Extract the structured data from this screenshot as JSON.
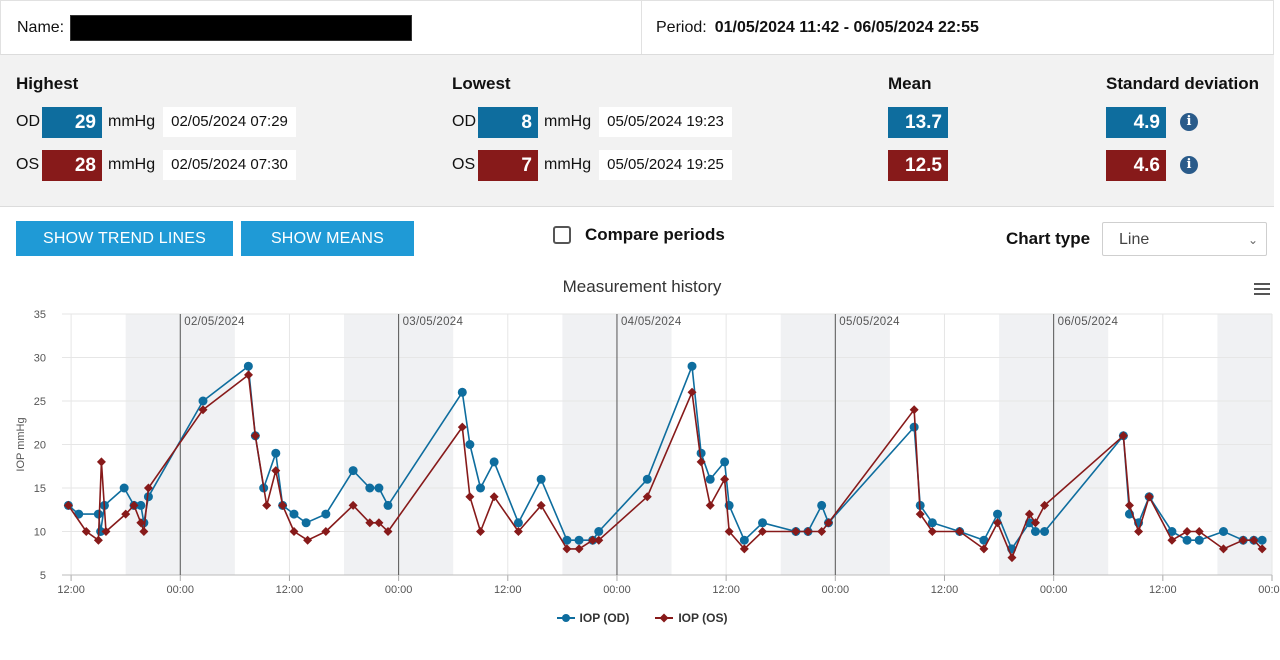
{
  "header": {
    "name_label": "Name:",
    "period_label": "Period:",
    "period_value": "01/05/2024 11:42 - 06/05/2024 22:55"
  },
  "stats": {
    "highest": {
      "title": "Highest",
      "od": {
        "eye": "OD",
        "value": "29",
        "unit": "mmHg",
        "date": "02/05/2024 07:29"
      },
      "os": {
        "eye": "OS",
        "value": "28",
        "unit": "mmHg",
        "date": "02/05/2024 07:30"
      }
    },
    "lowest": {
      "title": "Lowest",
      "od": {
        "eye": "OD",
        "value": "8",
        "unit": "mmHg",
        "date": "05/05/2024 19:23"
      },
      "os": {
        "eye": "OS",
        "value": "7",
        "unit": "mmHg",
        "date": "05/05/2024 19:25"
      }
    },
    "mean": {
      "title": "Mean",
      "od": "13.7",
      "os": "12.5"
    },
    "sd": {
      "title": "Standard deviation",
      "od": "4.9",
      "os": "4.6",
      "info_icon": "info-icon"
    }
  },
  "controls": {
    "trend_label": "SHOW TREND LINES",
    "means_label": "SHOW MEANS",
    "compare_label": "Compare periods",
    "compare_checked": false,
    "chart_type_label": "Chart type",
    "chart_type_value": "Line",
    "menu_icon": "hamburger-menu-icon"
  },
  "colors": {
    "od": "#0e6d9e",
    "os": "#871a1a",
    "night_band": "#f0f1f3",
    "button": "#1f9ad6"
  },
  "chart_data": {
    "type": "line",
    "title": "Measurement history",
    "ylabel": "IOP mmHg",
    "ylim": [
      5,
      35
    ],
    "yticks": [
      5,
      10,
      15,
      20,
      25,
      30,
      35
    ],
    "xlim": [
      "2024-05-01 11:00",
      "2024-05-07 00:00"
    ],
    "x_tick_labels": [
      "12:00",
      "00:00",
      "12:00",
      "00:00",
      "12:00",
      "00:00",
      "12:00",
      "00:00",
      "12:00",
      "00:00",
      "12:00",
      "00:00"
    ],
    "x_tick_times": [
      "2024-05-01 12:00",
      "2024-05-02 00:00",
      "2024-05-02 12:00",
      "2024-05-03 00:00",
      "2024-05-03 12:00",
      "2024-05-04 00:00",
      "2024-05-04 12:00",
      "2024-05-05 00:00",
      "2024-05-05 12:00",
      "2024-05-06 00:00",
      "2024-05-06 12:00",
      "2024-05-07 00:00"
    ],
    "day_labels": [
      "02/05/2024",
      "03/05/2024",
      "04/05/2024",
      "05/05/2024",
      "06/05/2024"
    ],
    "day_times": [
      "2024-05-02 00:00",
      "2024-05-03 00:00",
      "2024-05-04 00:00",
      "2024-05-05 00:00",
      "2024-05-06 00:00"
    ],
    "night_bands": [
      [
        "2024-05-01 18:00",
        "2024-05-02 06:00"
      ],
      [
        "2024-05-02 18:00",
        "2024-05-03 06:00"
      ],
      [
        "2024-05-03 18:00",
        "2024-05-04 06:00"
      ],
      [
        "2024-05-04 18:00",
        "2024-05-05 06:00"
      ],
      [
        "2024-05-05 18:00",
        "2024-05-06 06:00"
      ],
      [
        "2024-05-06 18:00",
        "2024-05-07 00:00"
      ]
    ],
    "series": [
      {
        "name": "IOP (OD)",
        "marker": "circle",
        "points": [
          [
            "2024-05-01 11:42",
            13
          ],
          [
            "2024-05-01 12:50",
            12
          ],
          [
            "2024-05-01 15:00",
            12
          ],
          [
            "2024-05-01 15:15",
            10
          ],
          [
            "2024-05-01 15:40",
            13
          ],
          [
            "2024-05-01 17:50",
            15
          ],
          [
            "2024-05-01 18:55",
            13
          ],
          [
            "2024-05-01 19:40",
            13
          ],
          [
            "2024-05-01 20:00",
            11
          ],
          [
            "2024-05-01 20:30",
            14
          ],
          [
            "2024-05-02 02:30",
            25
          ],
          [
            "2024-05-02 07:29",
            29
          ],
          [
            "2024-05-02 08:15",
            21
          ],
          [
            "2024-05-02 09:10",
            15
          ],
          [
            "2024-05-02 10:30",
            19
          ],
          [
            "2024-05-02 11:15",
            13
          ],
          [
            "2024-05-02 12:30",
            12
          ],
          [
            "2024-05-02 13:50",
            11
          ],
          [
            "2024-05-02 16:00",
            12
          ],
          [
            "2024-05-02 19:00",
            17
          ],
          [
            "2024-05-02 20:50",
            15
          ],
          [
            "2024-05-02 21:50",
            15
          ],
          [
            "2024-05-02 22:50",
            13
          ],
          [
            "2024-05-03 07:00",
            26
          ],
          [
            "2024-05-03 07:50",
            20
          ],
          [
            "2024-05-03 09:00",
            15
          ],
          [
            "2024-05-03 10:30",
            18
          ],
          [
            "2024-05-03 13:10",
            11
          ],
          [
            "2024-05-03 15:40",
            16
          ],
          [
            "2024-05-03 18:30",
            9
          ],
          [
            "2024-05-03 19:50",
            9
          ],
          [
            "2024-05-03 21:20",
            9
          ],
          [
            "2024-05-03 22:00",
            10
          ],
          [
            "2024-05-04 03:20",
            16
          ],
          [
            "2024-05-04 08:15",
            29
          ],
          [
            "2024-05-04 09:15",
            19
          ],
          [
            "2024-05-04 10:15",
            16
          ],
          [
            "2024-05-04 11:50",
            18
          ],
          [
            "2024-05-04 12:20",
            13
          ],
          [
            "2024-05-04 14:00",
            9
          ],
          [
            "2024-05-04 16:00",
            11
          ],
          [
            "2024-05-04 19:40",
            10
          ],
          [
            "2024-05-04 21:00",
            10
          ],
          [
            "2024-05-04 22:30",
            13
          ],
          [
            "2024-05-04 23:15",
            11
          ],
          [
            "2024-05-05 08:40",
            22
          ],
          [
            "2024-05-05 09:20",
            13
          ],
          [
            "2024-05-05 10:40",
            11
          ],
          [
            "2024-05-05 13:40",
            10
          ],
          [
            "2024-05-05 16:20",
            9
          ],
          [
            "2024-05-05 17:50",
            12
          ],
          [
            "2024-05-05 19:23",
            8
          ],
          [
            "2024-05-05 21:20",
            11
          ],
          [
            "2024-05-05 22:00",
            10
          ],
          [
            "2024-05-05 23:00",
            10
          ],
          [
            "2024-05-06 07:40",
            21
          ],
          [
            "2024-05-06 08:20",
            12
          ],
          [
            "2024-05-06 09:20",
            11
          ],
          [
            "2024-05-06 10:30",
            14
          ],
          [
            "2024-05-06 13:00",
            10
          ],
          [
            "2024-05-06 14:40",
            9
          ],
          [
            "2024-05-06 16:00",
            9
          ],
          [
            "2024-05-06 18:40",
            10
          ],
          [
            "2024-05-06 20:50",
            9
          ],
          [
            "2024-05-06 22:00",
            9
          ],
          [
            "2024-05-06 22:55",
            9
          ]
        ]
      },
      {
        "name": "IOP (OS)",
        "marker": "diamond",
        "points": [
          [
            "2024-05-01 11:42",
            13
          ],
          [
            "2024-05-01 13:40",
            10
          ],
          [
            "2024-05-01 15:00",
            9
          ],
          [
            "2024-05-01 15:20",
            18
          ],
          [
            "2024-05-01 15:50",
            10
          ],
          [
            "2024-05-01 18:00",
            12
          ],
          [
            "2024-05-01 18:55",
            13
          ],
          [
            "2024-05-01 19:40",
            11
          ],
          [
            "2024-05-01 20:00",
            10
          ],
          [
            "2024-05-01 20:30",
            15
          ],
          [
            "2024-05-02 02:30",
            24
          ],
          [
            "2024-05-02 07:30",
            28
          ],
          [
            "2024-05-02 08:15",
            21
          ],
          [
            "2024-05-02 09:30",
            13
          ],
          [
            "2024-05-02 10:30",
            17
          ],
          [
            "2024-05-02 11:15",
            13
          ],
          [
            "2024-05-02 12:30",
            10
          ],
          [
            "2024-05-02 14:00",
            9
          ],
          [
            "2024-05-02 16:00",
            10
          ],
          [
            "2024-05-02 19:00",
            13
          ],
          [
            "2024-05-02 20:50",
            11
          ],
          [
            "2024-05-02 21:50",
            11
          ],
          [
            "2024-05-02 22:50",
            10
          ],
          [
            "2024-05-03 07:00",
            22
          ],
          [
            "2024-05-03 07:50",
            14
          ],
          [
            "2024-05-03 09:00",
            10
          ],
          [
            "2024-05-03 10:30",
            14
          ],
          [
            "2024-05-03 13:10",
            10
          ],
          [
            "2024-05-03 15:40",
            13
          ],
          [
            "2024-05-03 18:30",
            8
          ],
          [
            "2024-05-03 19:50",
            8
          ],
          [
            "2024-05-03 21:20",
            9
          ],
          [
            "2024-05-03 22:00",
            9
          ],
          [
            "2024-05-04 03:20",
            14
          ],
          [
            "2024-05-04 08:15",
            26
          ],
          [
            "2024-05-04 09:15",
            18
          ],
          [
            "2024-05-04 10:15",
            13
          ],
          [
            "2024-05-04 11:50",
            16
          ],
          [
            "2024-05-04 12:20",
            10
          ],
          [
            "2024-05-04 14:00",
            8
          ],
          [
            "2024-05-04 16:00",
            10
          ],
          [
            "2024-05-04 19:40",
            10
          ],
          [
            "2024-05-04 21:00",
            10
          ],
          [
            "2024-05-04 22:30",
            10
          ],
          [
            "2024-05-04 23:15",
            11
          ],
          [
            "2024-05-05 08:40",
            24
          ],
          [
            "2024-05-05 09:20",
            12
          ],
          [
            "2024-05-05 10:40",
            10
          ],
          [
            "2024-05-05 13:40",
            10
          ],
          [
            "2024-05-05 16:20",
            8
          ],
          [
            "2024-05-05 17:50",
            11
          ],
          [
            "2024-05-05 19:25",
            7
          ],
          [
            "2024-05-05 21:20",
            12
          ],
          [
            "2024-05-05 22:00",
            11
          ],
          [
            "2024-05-05 23:00",
            13
          ],
          [
            "2024-05-06 07:40",
            21
          ],
          [
            "2024-05-06 08:20",
            13
          ],
          [
            "2024-05-06 09:20",
            10
          ],
          [
            "2024-05-06 10:30",
            14
          ],
          [
            "2024-05-06 13:00",
            9
          ],
          [
            "2024-05-06 14:40",
            10
          ],
          [
            "2024-05-06 16:00",
            10
          ],
          [
            "2024-05-06 18:40",
            8
          ],
          [
            "2024-05-06 20:50",
            9
          ],
          [
            "2024-05-06 22:00",
            9
          ],
          [
            "2024-05-06 22:55",
            8
          ]
        ]
      }
    ]
  }
}
